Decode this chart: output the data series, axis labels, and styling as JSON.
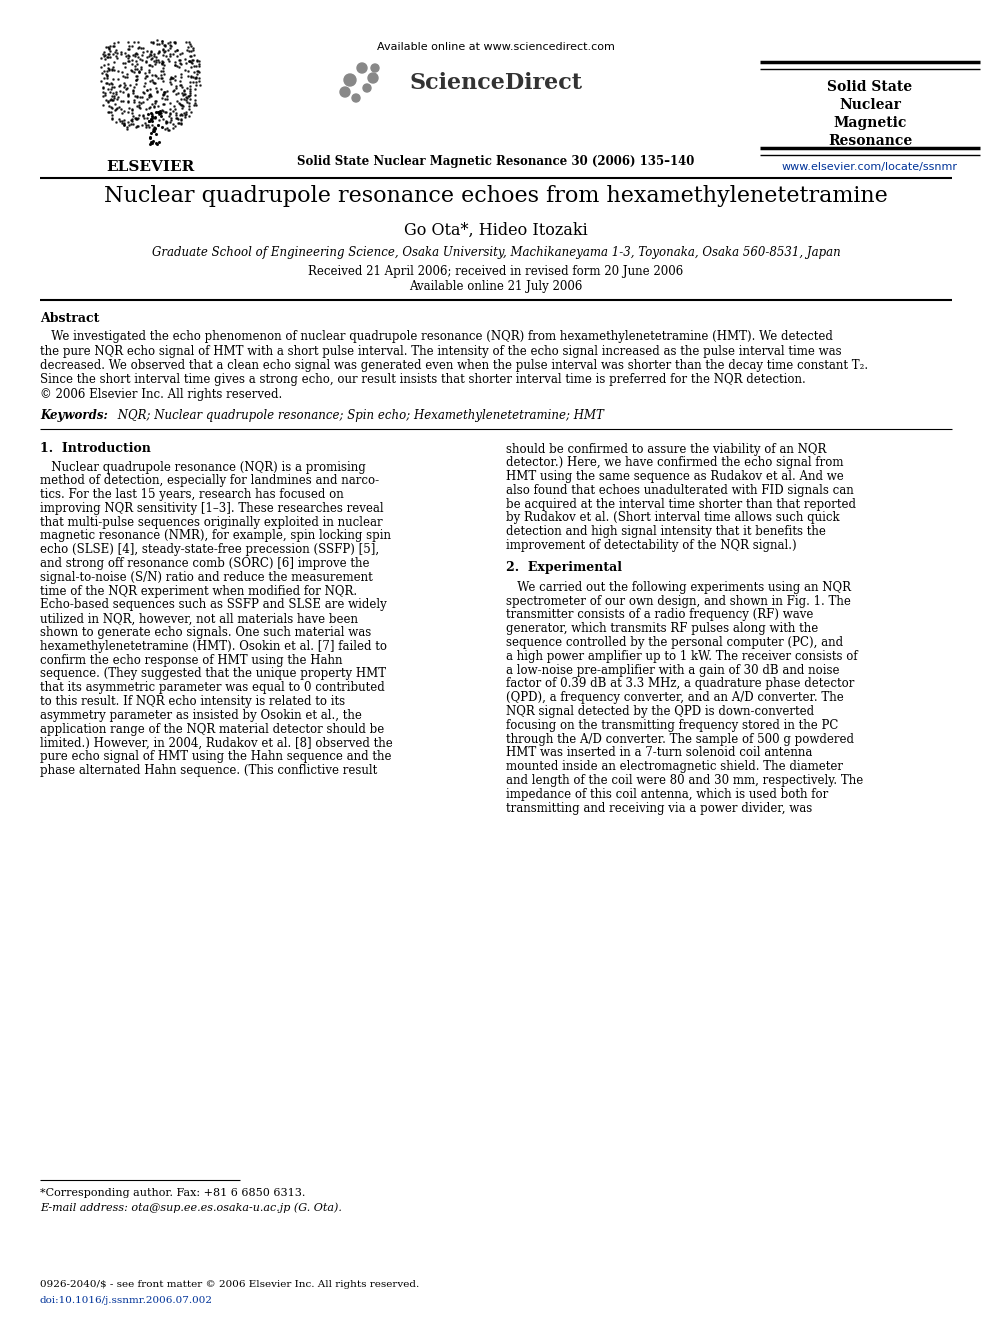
{
  "bg_color": "#ffffff",
  "title": "Nuclear quadrupole resonance echoes from hexamethylenetetramine",
  "authors": "Go Ota*, Hideo Itozaki",
  "affiliation": "Graduate School of Engineering Science, Osaka University, Machikaneyama 1-3, Toyonaka, Osaka 560-8531, Japan",
  "dates_line1": "Received 21 April 2006; received in revised form 20 June 2006",
  "dates_line2": "Available online 21 July 2006",
  "journal_header": "Solid State Nuclear Magnetic Resonance 30 (2006) 135–140",
  "available_online": "Available online at www.sciencedirect.com",
  "journal_name_lines": [
    "Solid State",
    "Nuclear",
    "Magnetic",
    "Resonance"
  ],
  "url": "www.elsevier.com/locate/ssnmr",
  "abstract_heading": "Abstract",
  "keywords_label": "Keywords:",
  "keywords_text": " NQR; Nuclear quadrupole resonance; Spin echo; Hexamethylenetetramine; HMT",
  "section1_heading": "1.  Introduction",
  "section2_heading": "2.  Experimental",
  "footnote1": "*Corresponding author. Fax: +81 6 6850 6313.",
  "footnote2": "E-mail address: ota@sup.ee.es.osaka-u.ac.jp (G. Ota).",
  "footer1": "0926-2040/$ - see front matter © 2006 Elsevier Inc. All rights reserved.",
  "footer2": "doi:10.1016/j.ssnmr.2006.07.002",
  "link_color": "#003399",
  "elsevier_text": "ELSEVIER",
  "abstract_lines": [
    "   We investigated the echo phenomenon of nuclear quadrupole resonance (NQR) from hexamethylenetetramine (HMT). We detected",
    "the pure NQR echo signal of HMT with a short pulse interval. The intensity of the echo signal increased as the pulse interval time was",
    "decreased. We observed that a clean echo signal was generated even when the pulse interval was shorter than the decay time constant T₂.",
    "Since the short interval time gives a strong echo, our result insists that shorter interval time is preferred for the NQR detection.",
    "© 2006 Elsevier Inc. All rights reserved."
  ],
  "s1_left_lines": [
    "   Nuclear quadrupole resonance (NQR) is a promising",
    "method of detection, especially for landmines and narco-",
    "tics. For the last 15 years, research has focused on",
    "improving NQR sensitivity [1–3]. These researches reveal",
    "that multi-pulse sequences originally exploited in nuclear",
    "magnetic resonance (NMR), for example, spin locking spin",
    "echo (SLSE) [4], steady-state-free precession (SSFP) [5],",
    "and strong off resonance comb (SORC) [6] improve the",
    "signal-to-noise (S/N) ratio and reduce the measurement",
    "time of the NQR experiment when modified for NQR.",
    "Echo-based sequences such as SSFP and SLSE are widely",
    "utilized in NQR, however, not all materials have been",
    "shown to generate echo signals. One such material was",
    "hexamethylenetetramine (HMT). Osokin et al. [7] failed to",
    "confirm the echo response of HMT using the Hahn",
    "sequence. (They suggested that the unique property HMT",
    "that its asymmetric parameter was equal to 0 contributed",
    "to this result. If NQR echo intensity is related to its",
    "asymmetry parameter as insisted by Osokin et al., the",
    "application range of the NQR material detector should be",
    "limited.) However, in 2004, Rudakov et al. [8] observed the",
    "pure echo signal of HMT using the Hahn sequence and the",
    "phase alternated Hahn sequence. (This conflictive result"
  ],
  "s1_right_lines": [
    "should be confirmed to assure the viability of an NQR",
    "detector.) Here, we have confirmed the echo signal from",
    "HMT using the same sequence as Rudakov et al. And we",
    "also found that echoes unadulterated with FID signals can",
    "be acquired at the interval time shorter than that reported",
    "by Rudakov et al. (Short interval time allows such quick",
    "detection and high signal intensity that it benefits the",
    "improvement of detectability of the NQR signal.)"
  ],
  "s2_right_lines": [
    "   We carried out the following experiments using an NQR",
    "spectrometer of our own design, and shown in Fig. 1. The",
    "transmitter consists of a radio frequency (RF) wave",
    "generator, which transmits RF pulses along with the",
    "sequence controlled by the personal computer (PC), and",
    "a high power amplifier up to 1 kW. The receiver consists of",
    "a low-noise pre-amplifier with a gain of 30 dB and noise",
    "factor of 0.39 dB at 3.3 MHz, a quadrature phase detector",
    "(QPD), a frequency converter, and an A/D converter. The",
    "NQR signal detected by the QPD is down-converted",
    "focusing on the transmitting frequency stored in the PC",
    "through the A/D converter. The sample of 500 g powdered",
    "HMT was inserted in a 7-turn solenoid coil antenna",
    "mounted inside an electromagnetic shield. The diameter",
    "and length of the coil were 80 and 30 mm, respectively. The",
    "impedance of this coil antenna, which is used both for",
    "transmitting and receiving via a power divider, was"
  ]
}
